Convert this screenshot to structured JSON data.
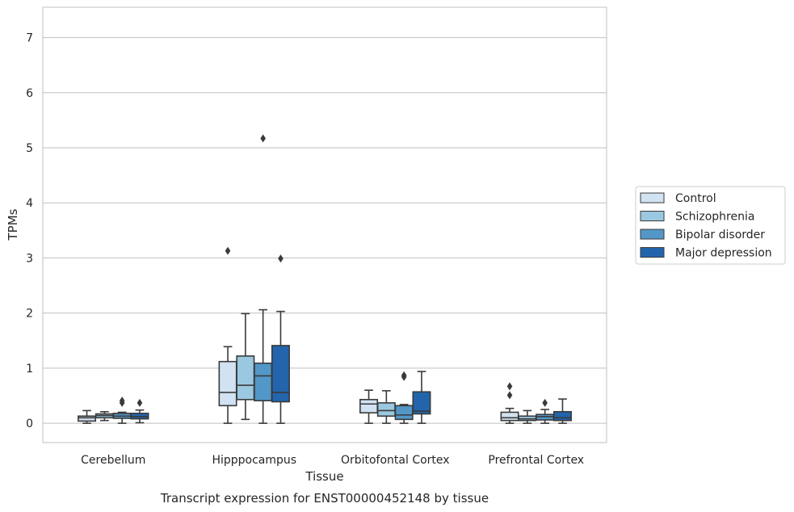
{
  "chart_data": {
    "type": "boxplot",
    "title": "Transcript expression for ENST00000452148 by tissue",
    "xlabel": "Tissue",
    "ylabel": "TPMs",
    "ylim": [
      -0.35,
      7.55
    ],
    "yticks": [
      0,
      1,
      2,
      3,
      4,
      5,
      6,
      7
    ],
    "grid": "horizontal",
    "legend_position": "right",
    "categories": [
      "Cerebellum",
      "Hipppocampus",
      "Orbitofontal Cortex",
      "Prefrontal Cortex"
    ],
    "series": [
      {
        "name": "Control",
        "color": "#d1e2f2",
        "boxes": [
          {
            "min": 0.0,
            "q1": 0.04,
            "median": 0.1,
            "q3": 0.13,
            "max": 0.23,
            "outliers": []
          },
          {
            "min": 0.0,
            "q1": 0.32,
            "median": 0.56,
            "q3": 1.12,
            "max": 1.39,
            "outliers": [
              3.13
            ]
          },
          {
            "min": 0.0,
            "q1": 0.19,
            "median": 0.35,
            "q3": 0.43,
            "max": 0.6,
            "outliers": []
          },
          {
            "min": 0.0,
            "q1": 0.05,
            "median": 0.1,
            "q3": 0.2,
            "max": 0.27,
            "outliers": [
              0.51,
              0.67
            ]
          }
        ]
      },
      {
        "name": "Schizophrenia",
        "color": "#9ac8e0",
        "boxes": [
          {
            "min": 0.05,
            "q1": 0.1,
            "median": 0.14,
            "q3": 0.17,
            "max": 0.21,
            "outliers": []
          },
          {
            "min": 0.07,
            "q1": 0.43,
            "median": 0.69,
            "q3": 1.22,
            "max": 1.99,
            "outliers": []
          },
          {
            "min": 0.0,
            "q1": 0.13,
            "median": 0.23,
            "q3": 0.37,
            "max": 0.59,
            "outliers": []
          },
          {
            "min": 0.0,
            "q1": 0.05,
            "median": 0.08,
            "q3": 0.13,
            "max": 0.23,
            "outliers": []
          }
        ]
      },
      {
        "name": "Bipolar disorder",
        "color": "#5297c7",
        "boxes": [
          {
            "min": 0.0,
            "q1": 0.09,
            "median": 0.13,
            "q3": 0.18,
            "max": 0.2,
            "outliers": [
              0.37,
              0.41
            ]
          },
          {
            "min": 0.0,
            "q1": 0.41,
            "median": 0.86,
            "q3": 1.09,
            "max": 2.06,
            "outliers": [
              5.17
            ]
          },
          {
            "min": 0.0,
            "q1": 0.07,
            "median": 0.15,
            "q3": 0.32,
            "max": 0.34,
            "outliers": [
              0.84,
              0.87
            ]
          },
          {
            "min": 0.0,
            "q1": 0.06,
            "median": 0.12,
            "q3": 0.16,
            "max": 0.25,
            "outliers": [
              0.37
            ]
          }
        ]
      },
      {
        "name": "Major depression",
        "color": "#2265ac",
        "boxes": [
          {
            "min": 0.01,
            "q1": 0.08,
            "median": 0.12,
            "q3": 0.18,
            "max": 0.24,
            "outliers": [
              0.37
            ]
          },
          {
            "min": 0.0,
            "q1": 0.39,
            "median": 0.56,
            "q3": 1.41,
            "max": 2.03,
            "outliers": [
              2.99
            ]
          },
          {
            "min": 0.0,
            "q1": 0.17,
            "median": 0.22,
            "q3": 0.57,
            "max": 0.94,
            "outliers": []
          },
          {
            "min": 0.0,
            "q1": 0.05,
            "median": 0.1,
            "q3": 0.21,
            "max": 0.44,
            "outliers": []
          }
        ]
      }
    ]
  }
}
